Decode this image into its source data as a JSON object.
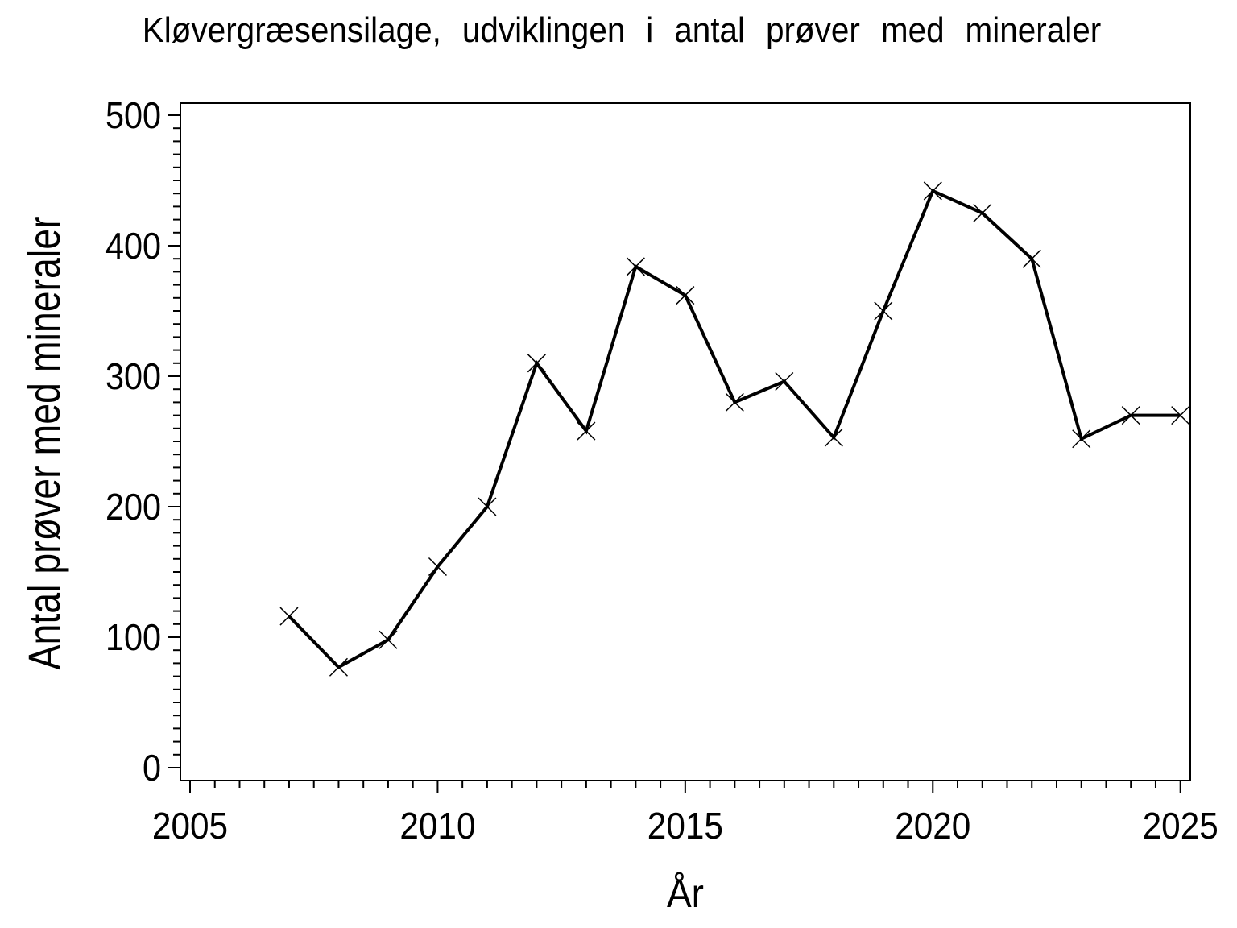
{
  "page": {
    "background": "#ffffff",
    "foreground": "#000000"
  },
  "chart_data": {
    "type": "line",
    "title": "Kløvergræsensilage, udviklingen i antal prøver med mineraler",
    "xlabel": "År",
    "ylabel": "Antal prøver med mineraler",
    "x": [
      2007,
      2008,
      2009,
      2010,
      2011,
      2012,
      2013,
      2014,
      2015,
      2016,
      2017,
      2018,
      2019,
      2020,
      2021,
      2022,
      2023,
      2024,
      2025
    ],
    "values": [
      116,
      77,
      98,
      154,
      200,
      310,
      258,
      384,
      362,
      280,
      296,
      253,
      350,
      442,
      425,
      390,
      252,
      270,
      270
    ],
    "series_name": "Antal prøver med mineraler",
    "xticks": [
      2005,
      2010,
      2015,
      2020,
      2025
    ],
    "yticks": [
      0,
      100,
      200,
      300,
      400,
      500
    ],
    "x_minor_step": 0.5,
    "y_minor_step": 10,
    "xlim": [
      2005,
      2025
    ],
    "ylim": [
      0,
      500
    ],
    "grid": false,
    "legend": false,
    "marker": "x",
    "line_color": "#000000",
    "text_color": "#000000",
    "background": "#ffffff"
  }
}
